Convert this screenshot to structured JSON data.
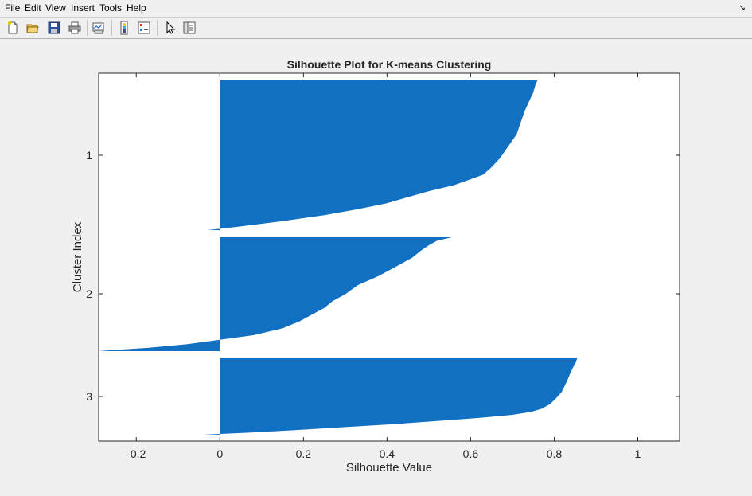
{
  "menubar": {
    "items": [
      "File",
      "Edit",
      "View",
      "Insert",
      "Tools",
      "Help"
    ],
    "corner_icon": "undock-arrow-icon"
  },
  "toolbar": {
    "buttons": [
      {
        "icon": "new-figure-icon"
      },
      {
        "icon": "open-file-icon"
      },
      {
        "icon": "save-icon"
      },
      {
        "icon": "print-icon"
      },
      {
        "icon": "link-plot-icon"
      },
      {
        "icon": "insert-colorbar-icon"
      },
      {
        "icon": "insert-legend-icon"
      },
      {
        "icon": "edit-plot-pointer-icon"
      },
      {
        "icon": "show-plot-tools-icon"
      }
    ]
  },
  "colors": {
    "bar": "#1170c2",
    "background": "#f0f0f0",
    "axes_bg": "#ffffff"
  },
  "chart_data": {
    "type": "bar",
    "orientation": "horizontal",
    "title": "Silhouette Plot for K-means Clustering",
    "xlabel": "Silhouette Value",
    "ylabel": "Cluster Index",
    "xlim": [
      -0.29,
      1.1
    ],
    "xticks": [
      -0.2,
      0,
      0.2,
      0.4,
      0.6,
      0.8,
      1
    ],
    "xtick_labels": [
      "-0.2",
      "0",
      "0.2",
      "0.4",
      "0.6",
      "0.8",
      "1"
    ],
    "yticks": [
      "1",
      "2",
      "3"
    ],
    "grid": false,
    "series": [
      {
        "name": "1",
        "profile": [
          [
            0.0,
            0.76
          ],
          [
            0.03,
            0.755
          ],
          [
            0.08,
            0.75
          ],
          [
            0.14,
            0.74
          ],
          [
            0.2,
            0.73
          ],
          [
            0.28,
            0.72
          ],
          [
            0.36,
            0.71
          ],
          [
            0.44,
            0.69
          ],
          [
            0.52,
            0.67
          ],
          [
            0.58,
            0.65
          ],
          [
            0.63,
            0.63
          ],
          [
            0.66,
            0.6
          ],
          [
            0.7,
            0.56
          ],
          [
            0.74,
            0.5
          ],
          [
            0.78,
            0.45
          ],
          [
            0.82,
            0.4
          ],
          [
            0.86,
            0.33
          ],
          [
            0.9,
            0.25
          ],
          [
            0.94,
            0.15
          ],
          [
            0.965,
            0.08
          ],
          [
            0.985,
            0.02
          ],
          [
            1.0,
            -0.03
          ]
        ]
      },
      {
        "name": "2",
        "profile": [
          [
            0.0,
            0.555
          ],
          [
            0.03,
            0.52
          ],
          [
            0.07,
            0.5
          ],
          [
            0.12,
            0.48
          ],
          [
            0.18,
            0.46
          ],
          [
            0.26,
            0.42
          ],
          [
            0.34,
            0.38
          ],
          [
            0.42,
            0.33
          ],
          [
            0.5,
            0.3
          ],
          [
            0.56,
            0.27
          ],
          [
            0.62,
            0.25
          ],
          [
            0.68,
            0.22
          ],
          [
            0.74,
            0.19
          ],
          [
            0.8,
            0.15
          ],
          [
            0.86,
            0.08
          ],
          [
            0.9,
            0.0
          ],
          [
            0.94,
            -0.08
          ],
          [
            0.97,
            -0.17
          ],
          [
            1.0,
            -0.29
          ]
        ]
      },
      {
        "name": "3",
        "profile": [
          [
            0.0,
            0.855
          ],
          [
            0.05,
            0.852
          ],
          [
            0.12,
            0.845
          ],
          [
            0.2,
            0.838
          ],
          [
            0.28,
            0.832
          ],
          [
            0.36,
            0.825
          ],
          [
            0.44,
            0.818
          ],
          [
            0.52,
            0.805
          ],
          [
            0.6,
            0.79
          ],
          [
            0.66,
            0.77
          ],
          [
            0.7,
            0.745
          ],
          [
            0.74,
            0.7
          ],
          [
            0.78,
            0.62
          ],
          [
            0.82,
            0.52
          ],
          [
            0.86,
            0.42
          ],
          [
            0.9,
            0.3
          ],
          [
            0.94,
            0.18
          ],
          [
            0.97,
            0.08
          ],
          [
            1.0,
            -0.04
          ]
        ]
      }
    ]
  }
}
